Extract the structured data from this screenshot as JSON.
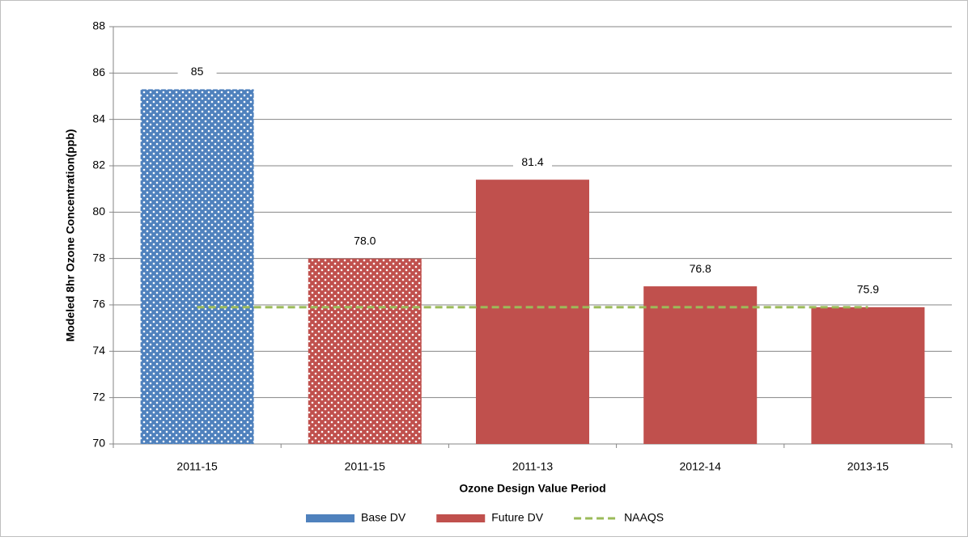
{
  "chart_data": {
    "type": "bar",
    "categories": [
      "2011-15",
      "2011-15",
      "2011-13",
      "2012-14",
      "2013-15"
    ],
    "series": [
      {
        "name": "Base DV",
        "color": "#4f81bd",
        "values": [
          85.3,
          null,
          null,
          null,
          null
        ],
        "value_labels": [
          "85",
          null,
          null,
          null,
          null
        ],
        "patterned": [
          true,
          null,
          null,
          null,
          null
        ]
      },
      {
        "name": "Future DV",
        "color": "#c0504d",
        "values": [
          null,
          78.0,
          81.4,
          76.8,
          75.9
        ],
        "value_labels": [
          null,
          "78.0",
          "81.4",
          "76.8",
          "75.9"
        ],
        "patterned": [
          null,
          true,
          false,
          false,
          false
        ]
      },
      {
        "name": "NAAQS",
        "type": "line",
        "dashed": true,
        "color": "#9bbb59",
        "values": [
          75.9,
          75.9,
          75.9,
          75.9,
          75.9
        ]
      }
    ],
    "xlabel": "Ozone Design Value Period",
    "ylabel": "Modeled 8hr Ozone Concentration(ppb)",
    "ylim": [
      70,
      88
    ],
    "yticks": [
      70,
      72,
      74,
      76,
      78,
      80,
      82,
      84,
      86,
      88
    ],
    "grid": true,
    "legend": "bottom"
  }
}
